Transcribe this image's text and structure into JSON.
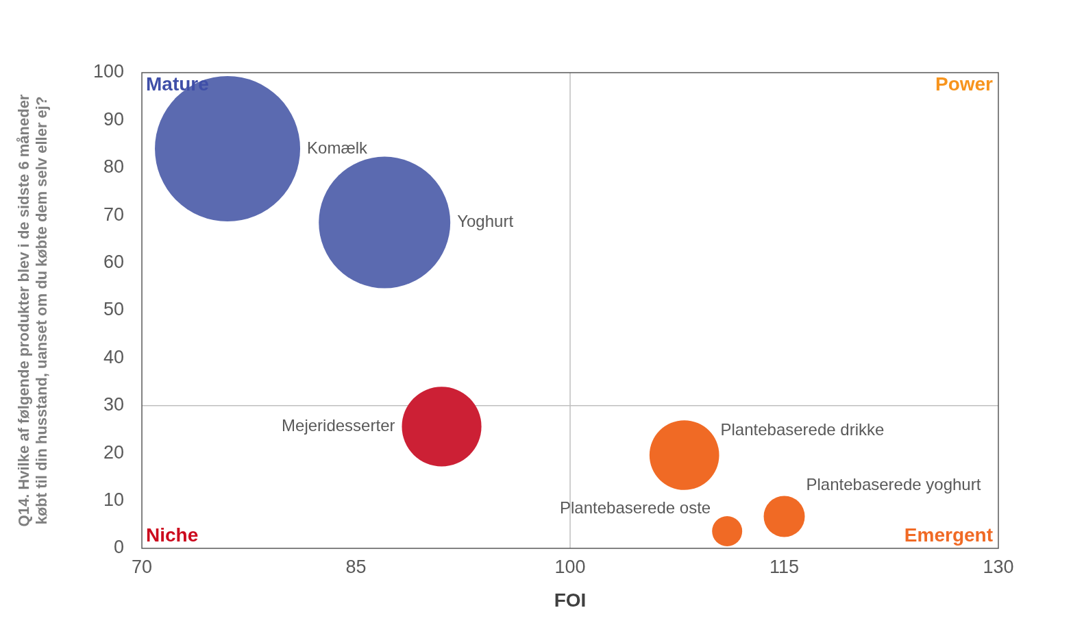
{
  "chart_data": {
    "type": "bubble",
    "xlabel": "FOI",
    "ylabel": "Q14. Hvilke af følgende produkter blev i de sidste 6 måneder købt til din husstand, uanset om du købte dem selv eller ej?",
    "xlim": [
      70,
      130
    ],
    "xticks": [
      70,
      85,
      100,
      115,
      130
    ],
    "ylim": [
      0,
      100
    ],
    "yticks": [
      0,
      10,
      20,
      30,
      40,
      50,
      60,
      70,
      80,
      90,
      100
    ],
    "grid": false,
    "legend": false,
    "series": [
      {
        "name": "Komælk",
        "color": "#5b6ab0",
        "x": [
          76
        ],
        "values": [
          84
        ],
        "sizes": [
          1
        ]
      },
      {
        "name": "Yoghurt",
        "color": "#5b6ab0",
        "x": [
          87
        ],
        "values": [
          68.5
        ],
        "sizes": [
          0.82
        ]
      },
      {
        "name": "Mejeridesserter",
        "color": "#cc2035",
        "x": [
          91
        ],
        "values": [
          25.6
        ],
        "sizes": [
          0.3
        ]
      },
      {
        "name": "Plantebaserede drikke",
        "color": "#f06a25",
        "x": [
          108
        ],
        "values": [
          19.6
        ],
        "sizes": [
          0.23
        ]
      },
      {
        "name": "Plantebaserede yoghurt",
        "color": "#f06a25",
        "x": [
          115
        ],
        "values": [
          6.7
        ],
        "sizes": [
          0.08
        ]
      },
      {
        "name": "Plantebaserede oste",
        "color": "#f06a25",
        "x": [
          111
        ],
        "values": [
          3.6
        ],
        "sizes": [
          0.043
        ]
      }
    ],
    "ref_lines": [
      {
        "axis": "x",
        "value": 100,
        "color": "#bfbfbf"
      },
      {
        "axis": "y",
        "value": 30,
        "color": "#bfbfbf"
      }
    ],
    "annotations": [
      "Mature",
      "Power",
      "Niche",
      "Emergent"
    ]
  }
}
